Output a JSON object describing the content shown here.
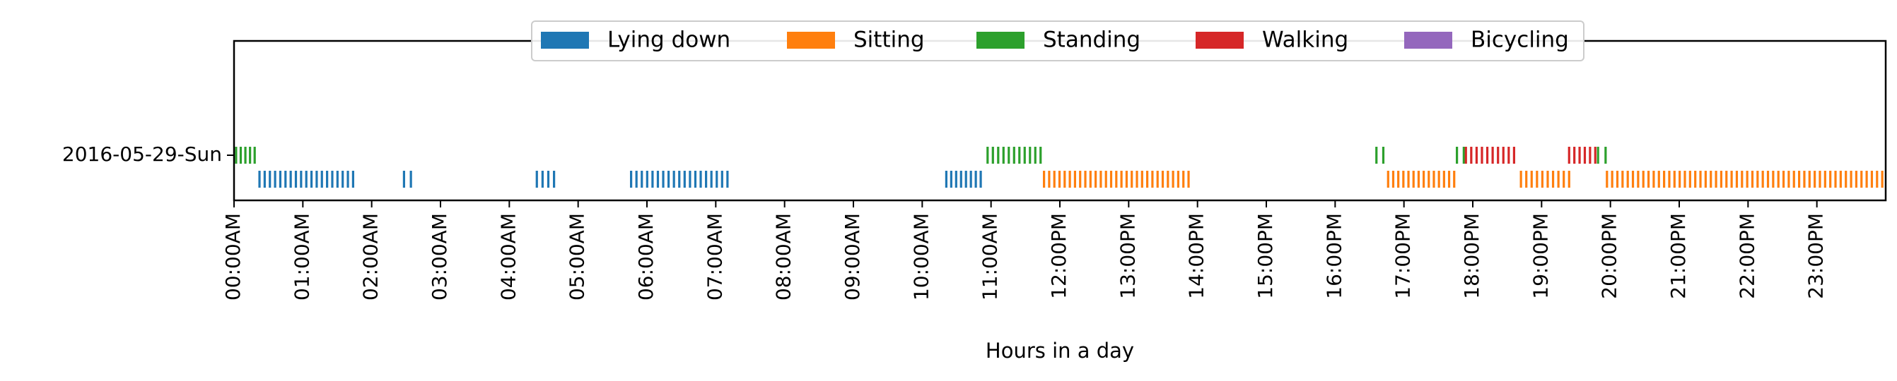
{
  "chart_data": {
    "type": "event-raster",
    "title": "",
    "xlabel": "Hours in a day",
    "ylabel": "",
    "xlim": [
      0,
      24
    ],
    "grid": false,
    "legend_placement": "top-center",
    "x_tick_values": [
      0,
      1,
      2,
      3,
      4,
      5,
      6,
      7,
      8,
      9,
      10,
      11,
      12,
      13,
      14,
      15,
      16,
      17,
      18,
      19,
      20,
      21,
      22,
      23
    ],
    "x_tick_labels": [
      "00:00AM",
      "01:00AM",
      "02:00AM",
      "03:00AM",
      "04:00AM",
      "05:00AM",
      "06:00AM",
      "07:00AM",
      "08:00AM",
      "09:00AM",
      "10:00AM",
      "11:00AM",
      "12:00PM",
      "13:00PM",
      "14:00PM",
      "15:00PM",
      "16:00PM",
      "17:00PM",
      "18:00PM",
      "19:00PM",
      "20:00PM",
      "21:00PM",
      "22:00PM",
      "23:00PM"
    ],
    "y_categories": [
      "2016-05-29-Sun"
    ],
    "series": [
      {
        "name": "Lying down",
        "color": "#1f77b4",
        "row": "low",
        "segments": [
          [
            0.37,
            1.73
          ],
          [
            2.47,
            2.57
          ],
          [
            4.4,
            4.65
          ],
          [
            5.77,
            7.17
          ],
          [
            10.35,
            10.85
          ]
        ]
      },
      {
        "name": "Sitting",
        "color": "#ff7f0e",
        "row": "low",
        "segments": [
          [
            11.77,
            13.87
          ],
          [
            16.77,
            17.73
          ],
          [
            18.7,
            19.4
          ],
          [
            19.95,
            23.95
          ]
        ]
      },
      {
        "name": "Standing",
        "color": "#2ca02c",
        "row": "high",
        "segments": [
          [
            0.03,
            0.3
          ],
          [
            10.95,
            11.72
          ],
          [
            16.6,
            16.7
          ],
          [
            17.77,
            17.87
          ],
          [
            19.82,
            19.93
          ]
        ]
      },
      {
        "name": "Walking",
        "color": "#d62728",
        "row": "high",
        "segments": [
          [
            17.9,
            18.6
          ],
          [
            19.4,
            19.78
          ]
        ]
      },
      {
        "name": "Bicycling",
        "color": "#9467bd",
        "row": "high",
        "segments": []
      }
    ]
  }
}
